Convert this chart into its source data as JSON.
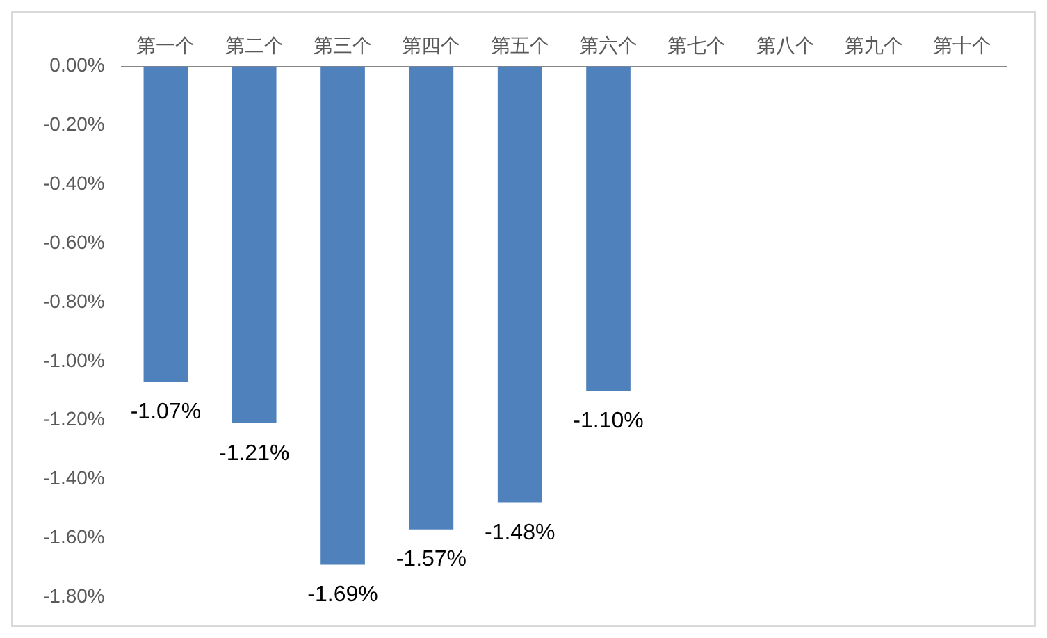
{
  "chart_data": {
    "type": "bar",
    "categories": [
      "第一个",
      "第二个",
      "第三个",
      "第四个",
      "第五个",
      "第六个",
      "第七个",
      "第八个",
      "第九个",
      "第十个"
    ],
    "values": [
      -1.07,
      -1.21,
      -1.69,
      -1.57,
      -1.48,
      -1.1,
      null,
      null,
      null,
      null
    ],
    "value_labels": [
      "-1.07%",
      "-1.21%",
      "-1.69%",
      "-1.57%",
      "-1.48%",
      "-1.10%",
      null,
      null,
      null,
      null
    ],
    "color": "#4f81bd",
    "ylim": [
      -1.8,
      0
    ],
    "yticks": [
      {
        "value": 0,
        "label": "0.00%"
      },
      {
        "value": -0.2,
        "label": "-0.20%"
      },
      {
        "value": -0.4,
        "label": "-0.40%"
      },
      {
        "value": -0.6,
        "label": "-0.60%"
      },
      {
        "value": -0.8,
        "label": "-0.80%"
      },
      {
        "value": -1.0,
        "label": "-1.00%"
      },
      {
        "value": -1.2,
        "label": "-1.20%"
      },
      {
        "value": -1.4,
        "label": "-1.40%"
      },
      {
        "value": -1.6,
        "label": "-1.60%"
      },
      {
        "value": -1.8,
        "label": "-1.80%"
      }
    ],
    "grid": false,
    "legend": false
  }
}
